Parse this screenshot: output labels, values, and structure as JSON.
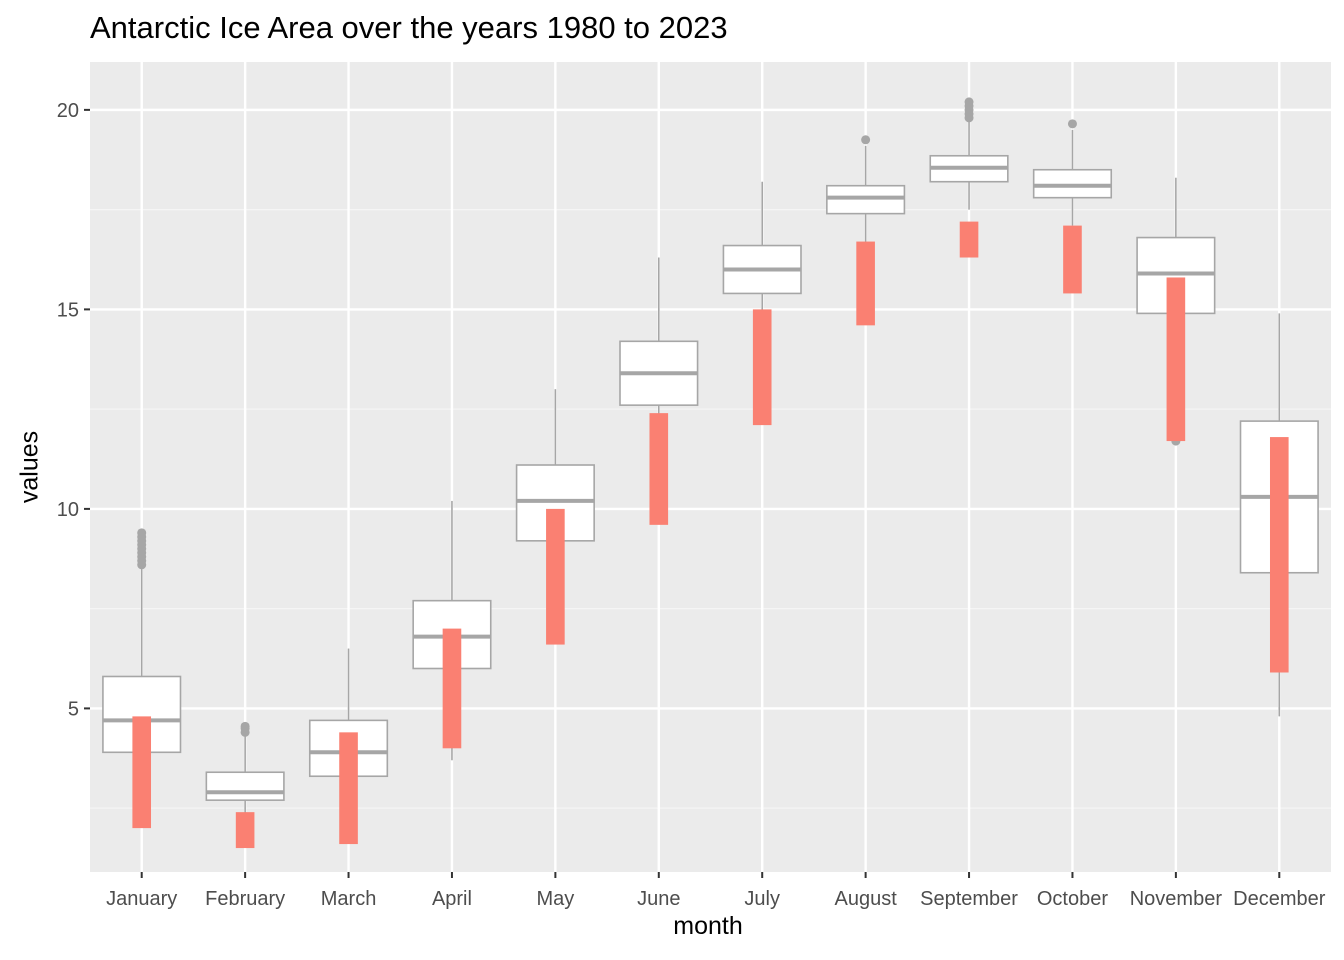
{
  "chart_data": {
    "type": "boxplot",
    "title": "Antarctic Ice Area over the years 1980 to 2023",
    "xlabel": "month",
    "ylabel": "values",
    "categories": [
      "January",
      "February",
      "March",
      "April",
      "May",
      "June",
      "July",
      "August",
      "September",
      "October",
      "November",
      "December"
    ],
    "ylim": [
      0.9,
      21.2
    ],
    "yticks": [
      5,
      10,
      15,
      20
    ],
    "grid": true,
    "legend": "none",
    "boxes": [
      {
        "month": "January",
        "lower_whisker": 2.7,
        "q1": 3.9,
        "median": 4.7,
        "q3": 5.8,
        "upper_whisker": 8.5,
        "outliers": [
          8.6,
          8.7,
          8.8,
          8.9,
          9.0,
          9.1,
          9.2,
          9.3,
          9.4
        ]
      },
      {
        "month": "February",
        "lower_whisker": 2.1,
        "q1": 2.7,
        "median": 2.9,
        "q3": 3.4,
        "upper_whisker": 4.3,
        "outliers": [
          4.4,
          4.5,
          4.55
        ]
      },
      {
        "month": "March",
        "lower_whisker": 2.4,
        "q1": 3.3,
        "median": 3.9,
        "q3": 4.7,
        "upper_whisker": 6.5,
        "outliers": []
      },
      {
        "month": "April",
        "lower_whisker": 3.7,
        "q1": 6.0,
        "median": 6.8,
        "q3": 7.7,
        "upper_whisker": 10.2,
        "outliers": []
      },
      {
        "month": "May",
        "lower_whisker": 7.3,
        "q1": 9.2,
        "median": 10.2,
        "q3": 11.1,
        "upper_whisker": 13.0,
        "outliers": []
      },
      {
        "month": "June",
        "lower_whisker": 10.8,
        "q1": 12.6,
        "median": 13.4,
        "q3": 14.2,
        "upper_whisker": 16.3,
        "outliers": []
      },
      {
        "month": "July",
        "lower_whisker": 13.6,
        "q1": 15.4,
        "median": 16.0,
        "q3": 16.6,
        "upper_whisker": 18.2,
        "outliers": []
      },
      {
        "month": "August",
        "lower_whisker": 16.6,
        "q1": 17.4,
        "median": 17.8,
        "q3": 18.1,
        "upper_whisker": 19.1,
        "outliers": [
          19.25
        ]
      },
      {
        "month": "September",
        "lower_whisker": 17.5,
        "q1": 18.2,
        "median": 18.55,
        "q3": 18.85,
        "upper_whisker": 19.7,
        "outliers": [
          19.8,
          19.9,
          20.0,
          20.1,
          20.2
        ]
      },
      {
        "month": "October",
        "lower_whisker": 17.1,
        "q1": 17.8,
        "median": 18.1,
        "q3": 18.5,
        "upper_whisker": 19.5,
        "outliers": [
          19.65
        ]
      },
      {
        "month": "November",
        "lower_whisker": 11.8,
        "q1": 14.9,
        "median": 15.9,
        "q3": 16.8,
        "upper_whisker": 18.3,
        "outliers": [
          11.7
        ]
      },
      {
        "month": "December",
        "lower_whisker": 4.8,
        "q1": 8.4,
        "median": 10.3,
        "q3": 12.2,
        "upper_whisker": 14.9,
        "outliers": []
      }
    ],
    "highlight_ranges": [
      {
        "month": "January",
        "low": 2.0,
        "high": 4.8
      },
      {
        "month": "February",
        "low": 1.5,
        "high": 2.4
      },
      {
        "month": "March",
        "low": 1.6,
        "high": 4.4
      },
      {
        "month": "April",
        "low": 4.0,
        "high": 7.0
      },
      {
        "month": "May",
        "low": 6.6,
        "high": 10.0
      },
      {
        "month": "June",
        "low": 9.6,
        "high": 12.4
      },
      {
        "month": "July",
        "low": 12.1,
        "high": 15.0
      },
      {
        "month": "August",
        "low": 14.6,
        "high": 16.7
      },
      {
        "month": "September",
        "low": 16.3,
        "high": 17.2
      },
      {
        "month": "October",
        "low": 15.4,
        "high": 17.1
      },
      {
        "month": "November",
        "low": 11.7,
        "high": 15.8
      },
      {
        "month": "December",
        "low": 5.9,
        "high": 11.8
      }
    ],
    "colors": {
      "panel": "#ebebeb",
      "grid_major": "#ffffff",
      "grid_minor": "#f5f5f5",
      "box_fill": "#ffffff",
      "box_line": "#a6a6a6",
      "highlight": "#fa8072",
      "tick_text": "#4d4d4d"
    }
  }
}
